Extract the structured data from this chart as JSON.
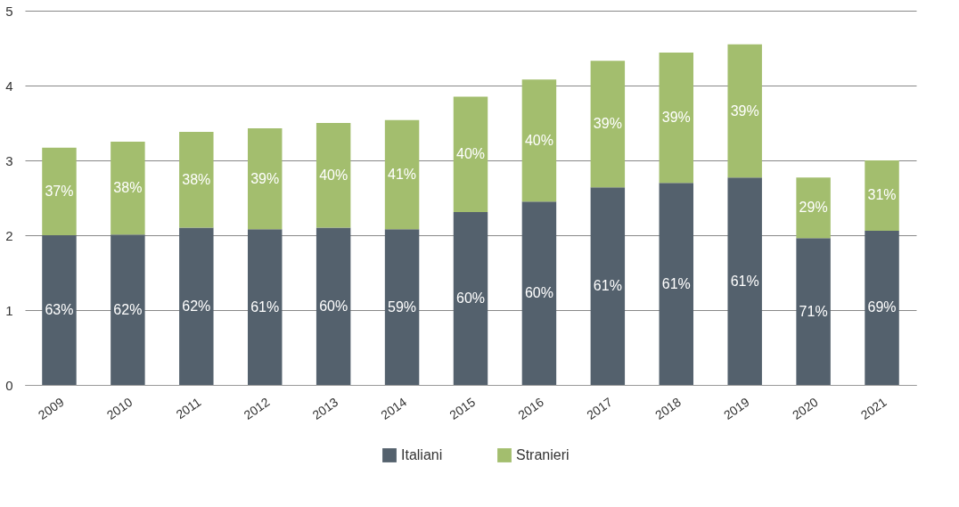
{
  "chart_data": {
    "type": "bar",
    "stacked": true,
    "categories": [
      "2009",
      "2010",
      "2011",
      "2012",
      "2013",
      "2014",
      "2015",
      "2016",
      "2017",
      "2018",
      "2019",
      "2020",
      "2021"
    ],
    "series": [
      {
        "name": "Italiani",
        "color": "#54616d",
        "values": [
          2.0,
          2.01,
          2.1,
          2.08,
          2.1,
          2.08,
          2.31,
          2.45,
          2.64,
          2.7,
          2.77,
          1.96,
          2.06
        ]
      },
      {
        "name": "Stranieri",
        "color": "#a3be6e",
        "values": [
          1.17,
          1.24,
          1.28,
          1.35,
          1.4,
          1.46,
          1.54,
          1.63,
          1.69,
          1.74,
          1.78,
          0.81,
          0.94
        ]
      }
    ],
    "annotations": [
      "63%",
      "62%",
      "62%",
      "61%",
      "60%",
      "59%",
      "60%",
      "60%",
      "61%",
      "61%",
      "61%",
      "71%",
      "69%",
      "37%",
      "38%",
      "38%",
      "39%",
      "40%",
      "41%",
      "40%",
      "40%",
      "39%",
      "39%",
      "39%",
      "29%",
      "31%"
    ],
    "ylim": [
      0,
      5
    ],
    "yticks": [
      0,
      1,
      2,
      3,
      4,
      5
    ],
    "grid": "y",
    "legend": "bottom"
  }
}
